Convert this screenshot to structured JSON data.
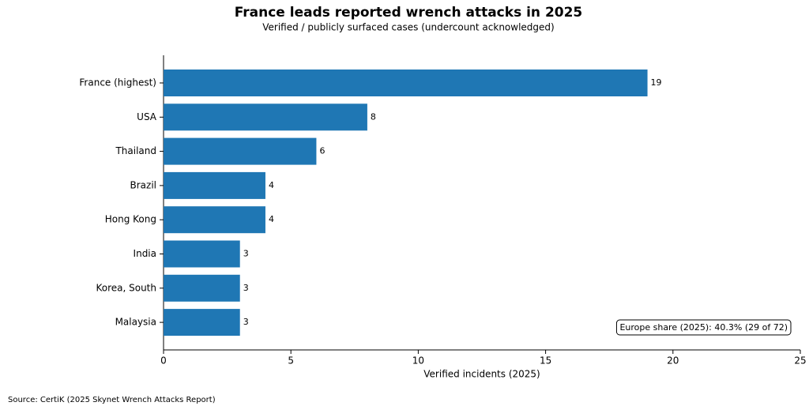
{
  "chart_data": {
    "type": "barh",
    "title": "France leads reported wrench attacks in 2025",
    "subtitle": "Verified / publicly surfaced cases (undercount acknowledged)",
    "categories": [
      "France (highest)",
      "USA",
      "Thailand",
      "Brazil",
      "Hong Kong",
      "India",
      "Korea, South",
      "Malaysia"
    ],
    "values": [
      19,
      8,
      6,
      4,
      4,
      3,
      3,
      3
    ],
    "color": "#1f77b4",
    "xlim": [
      0,
      25
    ],
    "xticks": [
      0,
      5,
      10,
      15,
      20,
      25
    ],
    "xlabel": "Verified incidents (2025)",
    "annotation": "Europe share (2025): 40.3% (29 of 72)",
    "source": "Source: CertiK (2025 Skynet Wrench Attacks Report)"
  }
}
